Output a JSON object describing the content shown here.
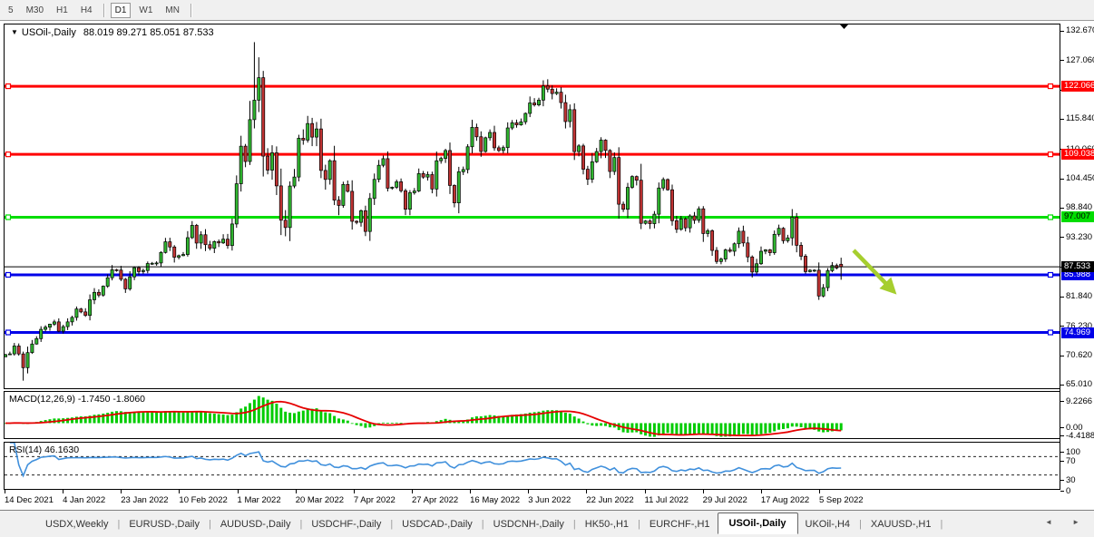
{
  "toolbar": {
    "items": [
      {
        "t": "btn",
        "label": "5",
        "active": false
      },
      {
        "t": "btn",
        "label": "M30",
        "active": false
      },
      {
        "t": "btn",
        "label": "H1",
        "active": false
      },
      {
        "t": "btn",
        "label": "H4",
        "active": false
      },
      {
        "t": "sep"
      },
      {
        "t": "btn",
        "label": "D1",
        "active": true
      },
      {
        "t": "btn",
        "label": "W1",
        "active": false
      },
      {
        "t": "btn",
        "label": "MN",
        "active": false
      },
      {
        "t": "sep"
      }
    ]
  },
  "chart": {
    "title": {
      "marker": "▼",
      "symbol": "USOil-,Daily",
      "quote": "88.019 89.271 85.051 87.533"
    }
  },
  "chart_data": {
    "type": "candlestick",
    "title": "USOil-,Daily",
    "last_quote": {
      "open": 88.019,
      "high": 89.271,
      "low": 85.051,
      "close": 87.533
    },
    "y_axis": {
      "tick_labels": [
        "132.670",
        "127.060",
        "121.450",
        "115.840",
        "110.060",
        "104.450",
        "98.840",
        "93.230",
        "87.620",
        "81.840",
        "76.230",
        "70.620",
        "65.010"
      ],
      "tick_values": [
        132.67,
        127.06,
        121.45,
        115.84,
        110.06,
        104.45,
        98.84,
        93.23,
        87.62,
        81.84,
        76.23,
        70.62,
        65.01
      ],
      "visible_range": [
        64.5,
        133.9
      ]
    },
    "x_axis": {
      "tick_labels": [
        "14 Dec 2021",
        "4 Jan 2022",
        "23 Jan 2022",
        "10 Feb 2022",
        "1 Mar 2022",
        "20 Mar 2022",
        "7 Apr 2022",
        "27 Apr 2022",
        "16 May 2022",
        "3 Jun 2022",
        "22 Jun 2022",
        "11 Jul 2022",
        "29 Jul 2022",
        "17 Aug 2022",
        "5 Sep 2022"
      ]
    },
    "closes": [
      70.73,
      70.87,
      72.38,
      70.86,
      68.23,
      71.12,
      72.76,
      73.79,
      75.57,
      75.98,
      76.56,
      76.99,
      75.21,
      76.08,
      76.99,
      77.85,
      79.46,
      78.9,
      78.23,
      81.22,
      82.64,
      82.12,
      83.82,
      85.43,
      86.96,
      86.9,
      85.14,
      83.31,
      85.6,
      87.35,
      86.61,
      86.82,
      88.15,
      88.2,
      88.26,
      90.27,
      92.31,
      91.32,
      89.36,
      89.66,
      89.88,
      93.1,
      95.46,
      92.07,
      93.66,
      91.76,
      91.07,
      92.35,
      92.1,
      92.81,
      91.59,
      95.72,
      103.41,
      110.6,
      107.67,
      115.68,
      119.4,
      123.7,
      108.7,
      106.02,
      109.33,
      103.01,
      96.44,
      95.04,
      102.98,
      104.7,
      112.12,
      111.76,
      114.93,
      112.34,
      113.9,
      105.96,
      104.24,
      107.82,
      100.28,
      99.27,
      103.28,
      101.96,
      96.23,
      96.03,
      98.26,
      94.29,
      100.6,
      104.25,
      106.95,
      108.21,
      102.56,
      102.75,
      103.79,
      102.07,
      98.54,
      101.7,
      102.02,
      105.36,
      104.69,
      105.17,
      102.41,
      107.81,
      108.26,
      109.77,
      103.09,
      99.76,
      105.71,
      106.13,
      110.49,
      114.2,
      112.4,
      109.59,
      112.21,
      113.23,
      110.29,
      109.77,
      110.33,
      114.09,
      115.07,
      114.67,
      115.26,
      116.87,
      118.87,
      118.5,
      119.41,
      122.11,
      121.51,
      120.67,
      120.93,
      118.93,
      115.31,
      117.59,
      109.56,
      110.65,
      106.19,
      104.27,
      107.62,
      109.57,
      111.76,
      109.78,
      105.76,
      108.43,
      99.5,
      98.53,
      102.73,
      104.79,
      104.09,
      95.84,
      96.3,
      95.78,
      97.59,
      102.6,
      104.22,
      102.26,
      96.35,
      94.7,
      96.7,
      94.98,
      97.26,
      96.42,
      98.62,
      93.89,
      94.42,
      90.66,
      88.54,
      89.01,
      90.76,
      90.5,
      91.93,
      94.34,
      92.09,
      89.41,
      86.53,
      88.11,
      90.5,
      90.77,
      90.23,
      93.74,
      94.89,
      92.52,
      93.06,
      97.01,
      91.64,
      89.55,
      86.61,
      86.87,
      86.88,
      81.94,
      83.54,
      86.79,
      87.78,
      87.31,
      87.533
    ],
    "candle_overrides": {
      "0": {
        "o": 70.3
      },
      "4": {
        "l": 65.75
      },
      "55": {
        "l": 107.0
      },
      "56": {
        "h": 130.5,
        "l": 114.0
      },
      "57": {
        "h": 127.6
      },
      "58": {
        "h": 125.0,
        "l": 104.8
      },
      "62": {
        "l": 93.6
      },
      "121": {
        "h": 123.2
      },
      "122": {
        "h": 123.4
      },
      "183": {
        "l": 81.2
      },
      "188": {
        "o": 88.019,
        "h": 89.271,
        "l": 85.051,
        "c": 87.533
      }
    },
    "colors": {
      "bull": "#2FB52F",
      "bear": "#BE3232",
      "wick": "#000000",
      "background": "#FFFFFF"
    },
    "hlines": [
      {
        "price": 122.066,
        "label": "122.066",
        "color": "#FF0000",
        "text_color": "#FFFFFF",
        "width": 3
      },
      {
        "price": 109.038,
        "label": "109.038",
        "color": "#FF0000",
        "text_color": "#FFFFFF",
        "width": 3
      },
      {
        "price": 97.007,
        "label": "97.007",
        "color": "#00DD00",
        "text_color": "#000000",
        "width": 3
      },
      {
        "price": 85.988,
        "label": "85.988",
        "color": "#0000E8",
        "text_color": "#FFFFFF",
        "width": 3
      },
      {
        "price": 74.969,
        "label": "74.969",
        "color": "#0000E8",
        "text_color": "#FFFFFF",
        "width": 3
      }
    ],
    "bid_line": {
      "price": 87.533,
      "label": "87.533",
      "color": "#000000",
      "text_color": "#FFFFFF",
      "width": 1
    },
    "arrow": {
      "from": [
        936,
        249
      ],
      "to": [
        974,
        288
      ],
      "color": "#A6CE2E"
    },
    "indicators": {
      "macd": {
        "label": "MACD(12,26,9) -1.7450 -1.8060",
        "params": [
          12,
          26,
          9
        ],
        "axis_labels": [
          "9.2266",
          "0.00",
          "-4.4188"
        ],
        "scale_max": 9.2266,
        "scale_min": -4.4188,
        "histogram_color": "#00CC00",
        "signal_color": "#E60000"
      },
      "rsi": {
        "label": "RSI(14) 46.1630",
        "period": 14,
        "current": 46.163,
        "axis_labels": [
          "100",
          "70",
          "30",
          "0"
        ],
        "levels": [
          70,
          30
        ],
        "line_color": "#4090DC"
      }
    }
  },
  "tabs": {
    "items": [
      {
        "label": "USDX,Weekly",
        "active": false
      },
      {
        "label": "EURUSD-,Daily",
        "active": false
      },
      {
        "label": "AUDUSD-,Daily",
        "active": false
      },
      {
        "label": "USDCHF-,Daily",
        "active": false
      },
      {
        "label": "USDCAD-,Daily",
        "active": false
      },
      {
        "label": "USDCNH-,Daily",
        "active": false
      },
      {
        "label": "HK50-,H1",
        "active": false
      },
      {
        "label": "EURCHF-,H1",
        "active": false
      },
      {
        "label": "USOil-,Daily",
        "active": true
      },
      {
        "label": "UKOil-,H4",
        "active": false
      },
      {
        "label": "XAUUSD-,H1",
        "active": false
      }
    ],
    "nav": {
      "left": "◄",
      "right": "►"
    }
  }
}
